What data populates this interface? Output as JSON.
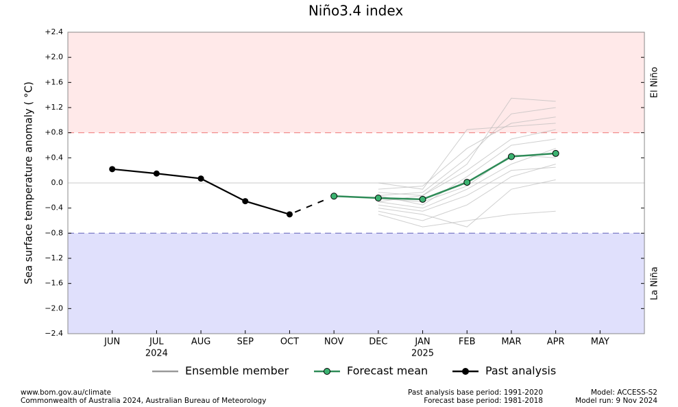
{
  "chart_data": {
    "type": "line",
    "title": "Niño3.4 index",
    "y_label": "Sea surface temperature anomaly ( °C)",
    "categories": [
      "JUN",
      "JUL",
      "AUG",
      "SEP",
      "OCT",
      "NOV",
      "DEC",
      "JAN",
      "FEB",
      "MAR",
      "APR",
      "MAY"
    ],
    "x_sublabels": [
      null,
      "2024",
      null,
      null,
      null,
      null,
      null,
      "2025",
      null,
      null,
      null,
      null
    ],
    "ylim": [
      -2.4,
      2.4
    ],
    "yticks": [
      {
        "value": 2.4,
        "label": "+2.4"
      },
      {
        "value": 2.0,
        "label": "+2.0"
      },
      {
        "value": 1.6,
        "label": "+1.6"
      },
      {
        "value": 1.2,
        "label": "+1.2"
      },
      {
        "value": 0.8,
        "label": "+0.8"
      },
      {
        "value": 0.4,
        "label": "+0.4"
      },
      {
        "value": 0.0,
        "label": "0.0"
      },
      {
        "value": -0.4,
        "label": "−0.4"
      },
      {
        "value": -0.8,
        "label": "−0.8"
      },
      {
        "value": -1.2,
        "label": "−1.2"
      },
      {
        "value": -1.6,
        "label": "−1.6"
      },
      {
        "value": -2.0,
        "label": "−2.0"
      },
      {
        "value": -2.4,
        "label": "−2.4"
      }
    ],
    "thresholds": [
      {
        "label": "El Niño",
        "value": 0.8,
        "line_color": "#f08080",
        "fill": "#ffe9e9",
        "text_color": "#e07070"
      },
      {
        "label": "La Niña",
        "value": -0.8,
        "line_color": "#7070c0",
        "fill": "#e0e0fc",
        "text_color": "#7070a8"
      }
    ],
    "series": [
      {
        "name": "Ensemble member",
        "color": "#999999",
        "member_color": "#bbbbbb",
        "members": [
          [
            null,
            null,
            null,
            null,
            null,
            null,
            -0.1,
            -0.05,
            0.55,
            0.95,
            1.05,
            null
          ],
          [
            null,
            null,
            null,
            null,
            null,
            null,
            -0.3,
            -0.2,
            0.3,
            1.35,
            1.3,
            null
          ],
          [
            null,
            null,
            null,
            null,
            null,
            null,
            -0.45,
            -0.6,
            -0.35,
            0.1,
            0.3,
            null
          ],
          [
            null,
            null,
            null,
            null,
            null,
            null,
            -0.2,
            -0.35,
            0.1,
            0.6,
            0.7,
            null
          ],
          [
            null,
            null,
            null,
            null,
            null,
            null,
            0.0,
            -0.1,
            0.85,
            0.9,
            0.95,
            null
          ],
          [
            null,
            null,
            null,
            null,
            null,
            null,
            -0.5,
            -0.7,
            -0.6,
            -0.5,
            -0.45,
            null
          ],
          [
            null,
            null,
            null,
            null,
            null,
            null,
            -0.25,
            -0.3,
            -0.05,
            0.45,
            0.4,
            null
          ],
          [
            null,
            null,
            null,
            null,
            null,
            null,
            -0.35,
            -0.45,
            -0.2,
            0.2,
            0.25,
            null
          ],
          [
            null,
            null,
            null,
            null,
            null,
            null,
            -0.15,
            -0.2,
            0.2,
            0.7,
            0.85,
            null
          ],
          [
            null,
            null,
            null,
            null,
            null,
            null,
            -0.4,
            -0.5,
            -0.7,
            -0.1,
            0.05,
            null
          ],
          [
            null,
            null,
            null,
            null,
            null,
            null,
            -0.2,
            -0.15,
            0.4,
            1.1,
            1.2,
            null
          ],
          [
            null,
            null,
            null,
            null,
            null,
            null,
            -0.3,
            -0.4,
            -0.1,
            0.3,
            0.55,
            null
          ]
        ]
      },
      {
        "name": "Forecast mean",
        "color": "#2e8b57",
        "marker_fill": "#3cb371",
        "values": [
          null,
          null,
          null,
          null,
          null,
          -0.21,
          -0.24,
          -0.26,
          0.01,
          0.42,
          0.47,
          null
        ]
      },
      {
        "name": "Past analysis",
        "color": "#000000",
        "values": [
          0.22,
          0.15,
          0.07,
          -0.29,
          -0.5,
          null,
          null,
          null,
          null,
          null,
          null,
          null
        ]
      }
    ],
    "footer": {
      "left": [
        "www.bom.gov.au/climate",
        "Commonwealth of Australia 2024, Australian Bureau of Meteorology"
      ],
      "center": [
        "Past analysis base period: 1991-2020",
        "Forecast base period: 1981-2018"
      ],
      "right": [
        "Model: ACCESS-S2",
        "Model run: 9 Nov 2024"
      ]
    }
  }
}
